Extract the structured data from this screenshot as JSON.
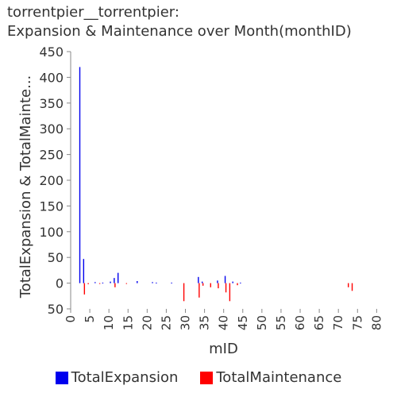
{
  "chart_data": {
    "type": "bar",
    "title_line1": "torrentpier__torrentpier:",
    "title_line2": "Expansion & Maintenance over Month(monthID)",
    "xlabel": "mID",
    "ylabel": "TotalExpansion & TotalMainte...",
    "xlim": [
      0,
      82
    ],
    "ylim": [
      -50,
      450
    ],
    "x_ticks": [
      0,
      5,
      10,
      15,
      20,
      25,
      30,
      35,
      40,
      45,
      50,
      55,
      60,
      65,
      70,
      75,
      80
    ],
    "y_ticks": [
      -50,
      0,
      50,
      100,
      150,
      200,
      250,
      300,
      350,
      400,
      450
    ],
    "y_tick_labels": [
      "50",
      "0",
      "50",
      "100",
      "150",
      "200",
      "250",
      "300",
      "350",
      "400",
      "450"
    ],
    "legend_position": "bottom",
    "series": [
      {
        "name": "TotalExpansion",
        "color": "#0000ee",
        "points": [
          [
            1,
            420
          ],
          [
            2,
            47
          ],
          [
            5,
            2
          ],
          [
            7,
            1
          ],
          [
            9,
            3
          ],
          [
            10,
            10
          ],
          [
            11,
            20
          ],
          [
            16,
            4
          ],
          [
            20,
            2
          ],
          [
            21,
            1
          ],
          [
            25,
            1
          ],
          [
            32,
            12
          ],
          [
            33,
            3
          ],
          [
            37,
            5
          ],
          [
            39,
            14
          ],
          [
            41,
            3
          ],
          [
            43,
            1
          ]
        ]
      },
      {
        "name": "TotalMaintenance",
        "color": "#ff0000",
        "points": [
          [
            2,
            -22
          ],
          [
            3,
            -2
          ],
          [
            6,
            -1
          ],
          [
            10,
            -8
          ],
          [
            13,
            -1
          ],
          [
            28,
            -35
          ],
          [
            32,
            -28
          ],
          [
            33,
            -5
          ],
          [
            35,
            -8
          ],
          [
            37,
            -10
          ],
          [
            39,
            -18
          ],
          [
            40,
            -35
          ],
          [
            42,
            -4
          ],
          [
            71,
            -8
          ],
          [
            72,
            -15
          ]
        ]
      }
    ]
  }
}
